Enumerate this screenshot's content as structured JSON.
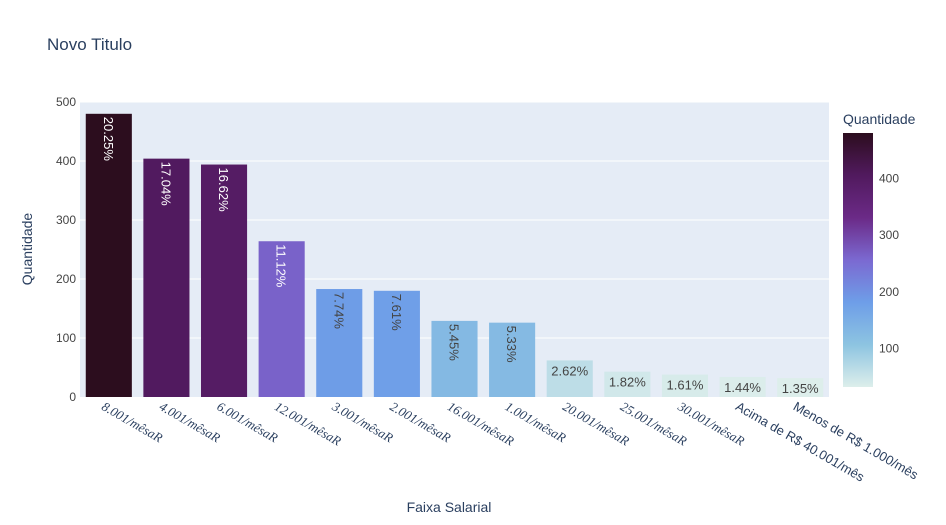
{
  "chart_data": {
    "type": "bar",
    "title": "Novo Titulo",
    "xlabel": "Faixa Salarial",
    "ylabel": "Quantidade",
    "ylim": [
      0,
      500
    ],
    "yticks": [
      0,
      100,
      200,
      300,
      400,
      500
    ],
    "categories": [
      "8.001/mêsaR",
      "4.001/mêsaR",
      "6.001/mêsaR",
      "12.001/mêsaR",
      "3.001/mêsaR",
      "2.001/mêsaR",
      "16.001/mêsaR",
      "1.001/mêsaR",
      "20.001/mêsaR",
      "25.001/mêsaR",
      "30.001/mêsaR",
      "Acima de R$ 40.001/mês",
      "Menos de R$ 1.000/mês"
    ],
    "category_italic": [
      true,
      true,
      true,
      true,
      true,
      true,
      true,
      true,
      true,
      true,
      true,
      false,
      false
    ],
    "values": [
      480,
      404,
      394,
      264,
      183,
      180,
      129,
      126,
      62,
      43,
      38,
      34,
      32
    ],
    "data_labels": [
      "20.25%",
      "17.04%",
      "16.62%",
      "11.12%",
      "7.74%",
      "7.61%",
      "5.45%",
      "5.33%",
      "2.62%",
      "1.82%",
      "1.61%",
      "1.44%",
      "1.35%"
    ],
    "colorbar": {
      "title": "Quantidade",
      "range": [
        32,
        480
      ],
      "ticks": [
        100,
        200,
        300,
        400
      ],
      "colorscale": [
        "#ddeeeb",
        "#8dc4e1",
        "#6e9ee8",
        "#7b69d1",
        "#6b2a87",
        "#511a5e",
        "#2c0d1e"
      ]
    },
    "grid": true,
    "legend": "colorbar-right"
  }
}
